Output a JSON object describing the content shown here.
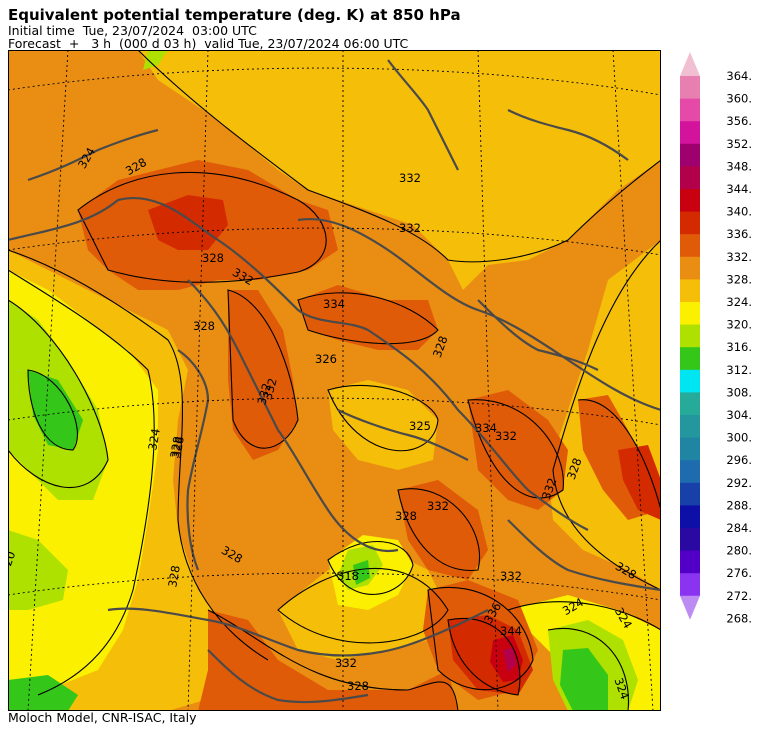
{
  "header": {
    "title": "Equivalent potential temperature (deg. K) at 850 hPa",
    "line1": "Initial time  Tue, 23/07/2024  03:00 UTC",
    "line2": "Forecast  +   3 h  (000 d 03 h)  valid Tue, 23/07/2024 06:00 UTC"
  },
  "footer": "Moloch Model, CNR-ISAC, Italy",
  "colorbar": {
    "levels": [
      "364.",
      "360.",
      "356.",
      "352.",
      "348.",
      "344.",
      "340.",
      "336.",
      "332.",
      "328.",
      "324.",
      "320.",
      "316.",
      "312.",
      "308.",
      "304.",
      "300.",
      "296.",
      "292.",
      "288.",
      "284.",
      "280.",
      "276.",
      "272.",
      "268."
    ],
    "colors": [
      "#e77fb0",
      "#e64aa9",
      "#d3139c",
      "#9e006e",
      "#b3004a",
      "#c80010",
      "#d42a00",
      "#e05b08",
      "#e98e12",
      "#f5be09",
      "#fbf000",
      "#aee000",
      "#34c719",
      "#00e5f2",
      "#26aa9a",
      "#23969e",
      "#2085a2",
      "#1e6bae",
      "#1740a8",
      "#0e0fa6",
      "#2a08a2",
      "#5200c8",
      "#8a33f0"
    ],
    "top_color": "#f0bfd2",
    "bottom_color": "#bd8cf2"
  },
  "map_labels": [
    {
      "text": "324"
    },
    {
      "text": "328"
    },
    {
      "text": "332"
    },
    {
      "text": "332"
    },
    {
      "text": "334"
    },
    {
      "text": "328"
    },
    {
      "text": "326"
    },
    {
      "text": "332"
    },
    {
      "text": "328"
    },
    {
      "text": "324"
    },
    {
      "text": "328"
    },
    {
      "text": "325"
    },
    {
      "text": "334"
    },
    {
      "text": "332"
    },
    {
      "text": "328"
    },
    {
      "text": "332"
    },
    {
      "text": "328"
    },
    {
      "text": "328"
    },
    {
      "text": "332"
    },
    {
      "text": "328"
    },
    {
      "text": "318"
    },
    {
      "text": "332"
    },
    {
      "text": "336"
    },
    {
      "text": "344"
    },
    {
      "text": "324"
    },
    {
      "text": "328"
    },
    {
      "text": "332"
    },
    {
      "text": "328"
    },
    {
      "text": "324"
    },
    {
      "text": "20"
    },
    {
      "text": "332"
    },
    {
      "text": "328"
    },
    {
      "text": "328"
    },
    {
      "text": "332"
    },
    {
      "text": "324"
    }
  ]
}
